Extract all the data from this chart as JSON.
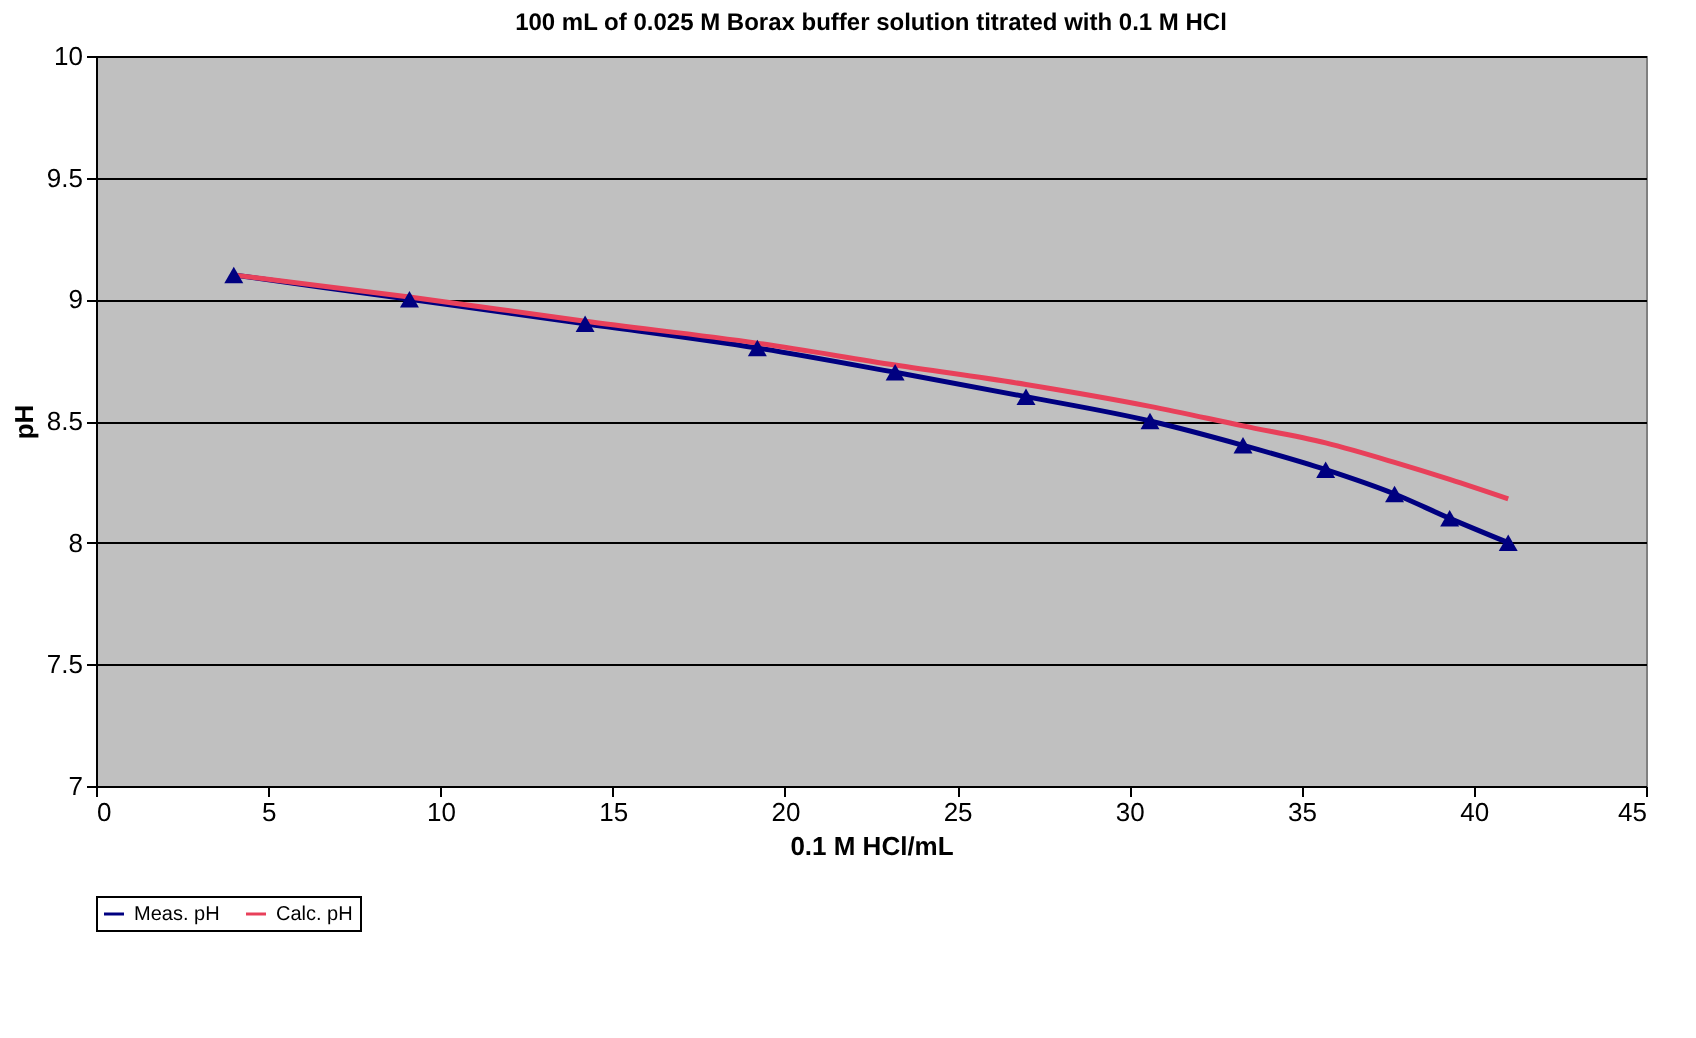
{
  "chart_data": {
    "type": "line",
    "title": "100 mL of 0.025 M Borax buffer solution titrated with 0.1 M HCl",
    "xlabel": "0.1 M HCl/mL",
    "ylabel": "pH",
    "xlim": [
      0,
      45
    ],
    "xticks": [
      0,
      5,
      10,
      15,
      20,
      25,
      30,
      35,
      40,
      45
    ],
    "ylim": [
      7,
      10
    ],
    "yticks": [
      7,
      7.5,
      8,
      8.5,
      9,
      9.5,
      10
    ],
    "grid": "y",
    "legend": "bottom",
    "series": [
      {
        "name": "Meas. pH",
        "color": "#000080",
        "marker": "triangle",
        "x": [
          4.0,
          9.1,
          14.2,
          19.2,
          23.2,
          27.0,
          30.6,
          33.3,
          35.7,
          37.7,
          39.3,
          41.0
        ],
        "values": [
          9.1,
          9.0,
          8.9,
          8.8,
          8.7,
          8.6,
          8.5,
          8.4,
          8.3,
          8.2,
          8.1,
          8.0
        ]
      },
      {
        "name": "Calc. pH",
        "color": "#e8405a",
        "marker": "none",
        "x": [
          4.0,
          9.1,
          14.2,
          19.2,
          23.2,
          27.0,
          30.6,
          33.3,
          35.7,
          37.7,
          39.3,
          41.0
        ],
        "values": [
          9.1,
          9.01,
          8.91,
          8.82,
          8.73,
          8.65,
          8.56,
          8.48,
          8.41,
          8.33,
          8.26,
          8.18
        ]
      }
    ]
  }
}
